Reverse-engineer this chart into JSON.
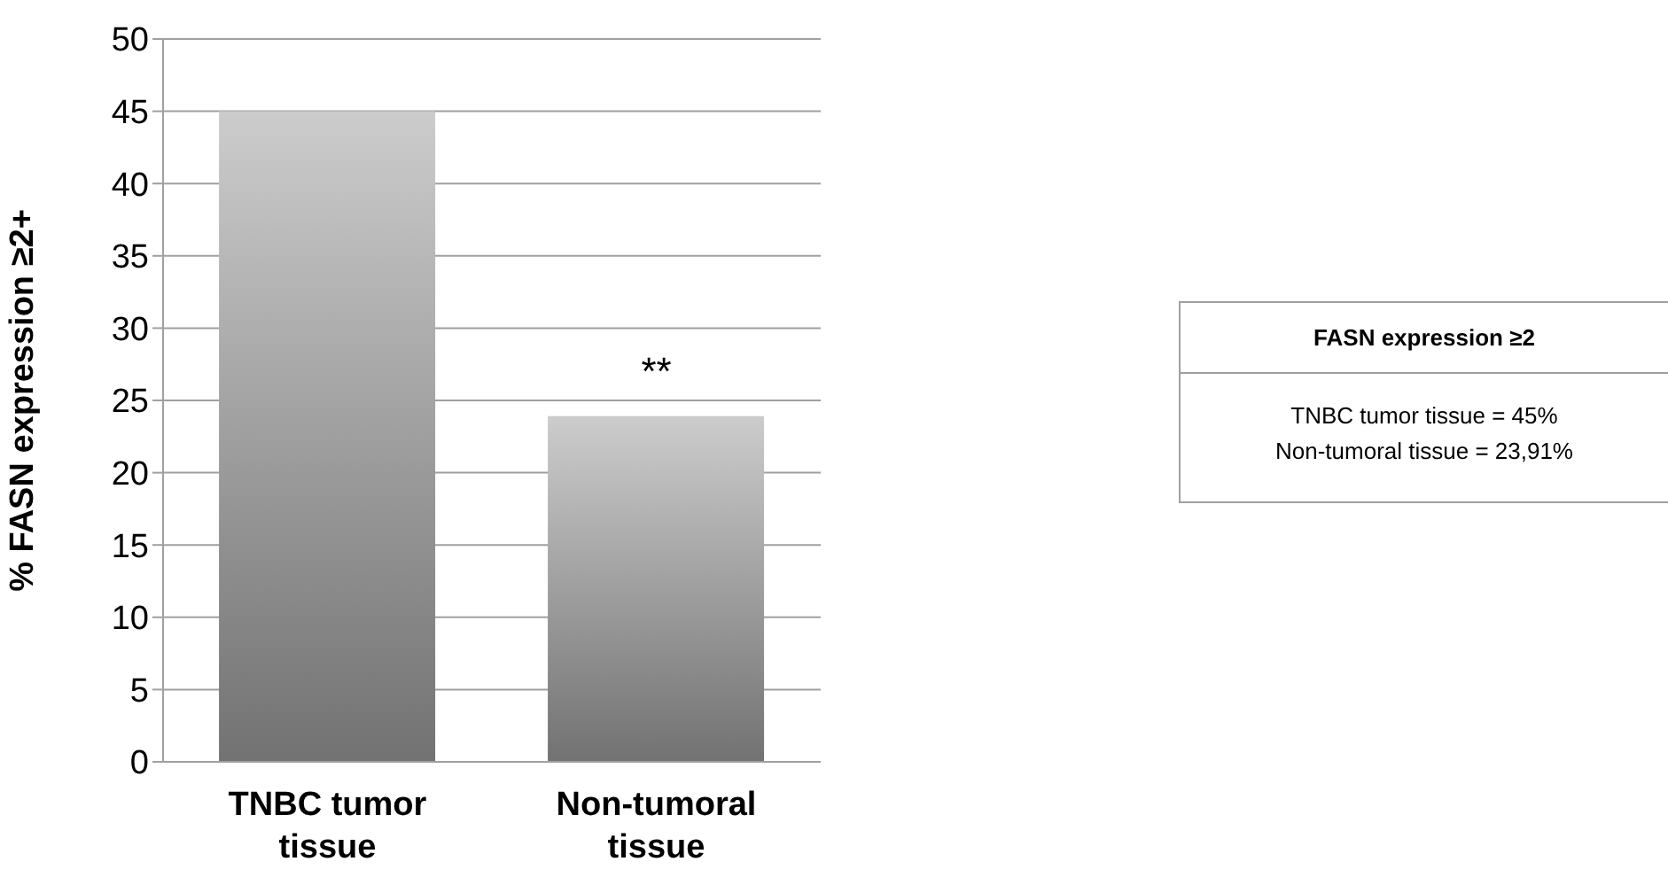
{
  "chart_data": {
    "type": "bar",
    "ylabel": "% FASN expression ≥2+",
    "categories": [
      "TNBC tumor tissue",
      "Non-tumoral tissue"
    ],
    "values": [
      45,
      23.91
    ],
    "color": "#a3a3a3",
    "ylim": [
      0,
      50
    ],
    "yticks": [
      0,
      5,
      10,
      15,
      20,
      25,
      30,
      35,
      40,
      45,
      50
    ],
    "grid": "y",
    "legend": false,
    "annotations": [
      {
        "text": "**",
        "x": "Non-tumoral tissue",
        "y": 23.91
      },
      "FASN expression ≥2",
      "TNBC tumor tissue = 45%",
      "Non-tumoral tissue = 23,91%"
    ]
  }
}
